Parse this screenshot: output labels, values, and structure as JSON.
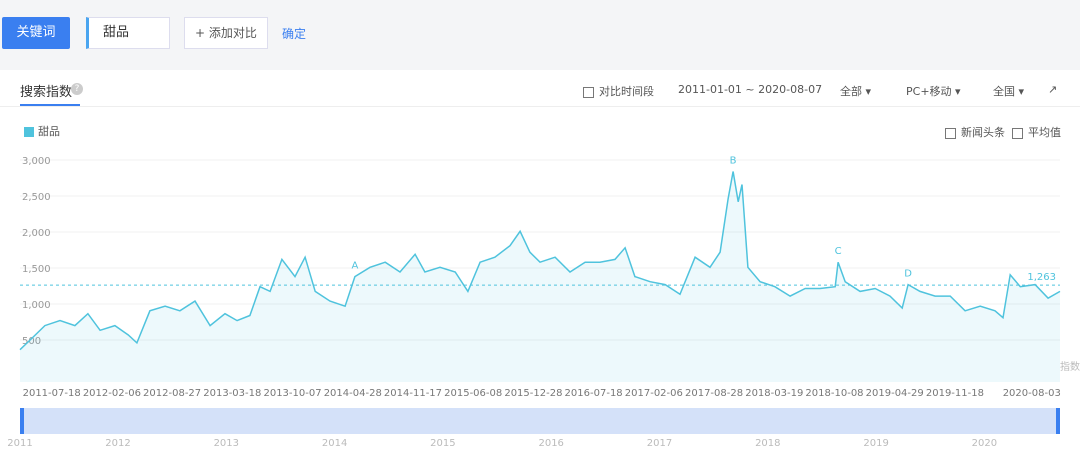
{
  "toolbar": {
    "keyword_button": "关键词",
    "keyword": "甜品",
    "add_compare": "添加对比",
    "confirm": "确定"
  },
  "panel": {
    "title": "搜索指数",
    "help": "?",
    "compare_period": "对比时间段",
    "date_range": "2011-01-01 ~ 2020-08-07",
    "scope": "全部",
    "device": "PC+移动",
    "region": "全国",
    "news": "新闻头条",
    "average_toggle": "平均值",
    "watermark": "@百度指数"
  },
  "chart_data": {
    "type": "line",
    "x": [
      "2011-01-01",
      "2011-02-04",
      "2011-03-26",
      "2011-05-16",
      "2011-07-05",
      "2011-08-18",
      "2011-09-28",
      "2011-11-17",
      "2012-01-01",
      "2012-01-30",
      "2012-03-14",
      "2012-05-04",
      "2012-06-23",
      "2012-08-13",
      "2012-10-03",
      "2012-11-22",
      "2013-01-02",
      "2013-02-14",
      "2013-03-20",
      "2013-04-23",
      "2013-06-02",
      "2013-07-16",
      "2013-08-19",
      "2013-09-22",
      "2013-11-11",
      "2014-01-01",
      "2014-02-03",
      "2014-03-26",
      "2014-05-16",
      "2014-07-05",
      "2014-08-25",
      "2014-09-27",
      "2014-11-17",
      "2015-01-07",
      "2015-02-19",
      "2015-04-01",
      "2015-05-21",
      "2015-07-11",
      "2015-08-14",
      "2015-09-16",
      "2015-10-20",
      "2015-12-10",
      "2016-01-29",
      "2016-03-20",
      "2016-05-09",
      "2016-06-29",
      "2016-08-02",
      "2016-09-04",
      "2016-10-25",
      "2016-12-15",
      "2017-02-03",
      "2017-03-26",
      "2017-05-15",
      "2017-06-18",
      "2017-07-15",
      "2017-08-01",
      "2017-08-18",
      "2017-08-31",
      "2017-09-20",
      "2017-10-31",
      "2017-12-20",
      "2018-02-09",
      "2018-04-01",
      "2018-05-21",
      "2018-07-11",
      "2018-07-21",
      "2018-08-14",
      "2018-10-03",
      "2018-11-23",
      "2019-01-12",
      "2019-02-22",
      "2019-03-14",
      "2019-04-23",
      "2019-06-13",
      "2019-08-03",
      "2019-09-22",
      "2019-11-12",
      "2020-01-01",
      "2020-01-28",
      "2020-02-21",
      "2020-03-26",
      "2020-05-15",
      "2020-06-28",
      "2020-08-07"
    ],
    "series": [
      {
        "name": "甜品",
        "color": "#4fc3dd",
        "values": [
          365,
          500,
          700,
          770,
          700,
          865,
          635,
          700,
          570,
          460,
          905,
          970,
          905,
          1040,
          700,
          865,
          770,
          840,
          1240,
          1175,
          1620,
          1380,
          1650,
          1175,
          1040,
          970,
          1380,
          1510,
          1580,
          1445,
          1690,
          1445,
          1510,
          1445,
          1175,
          1580,
          1650,
          1810,
          2010,
          1720,
          1580,
          1650,
          1445,
          1580,
          1580,
          1620,
          1780,
          1380,
          1310,
          1270,
          1135,
          1650,
          1510,
          1720,
          2460,
          2840,
          2420,
          2660,
          1510,
          1310,
          1240,
          1110,
          1215,
          1215,
          1240,
          1580,
          1310,
          1175,
          1215,
          1110,
          945,
          1270,
          1175,
          1110,
          1110,
          905,
          970,
          905,
          810,
          1405,
          1240,
          1270,
          1080,
          1175
        ]
      }
    ],
    "xlim": [
      "2011-01-01",
      "2020-08-07"
    ],
    "xticks": [
      "2011-07-18",
      "2012-02-06",
      "2012-08-27",
      "2013-03-18",
      "2013-10-07",
      "2014-04-28",
      "2014-11-17",
      "2015-06-08",
      "2015-12-28",
      "2016-07-18",
      "2017-02-06",
      "2017-08-28",
      "2018-03-19",
      "2018-10-08",
      "2019-04-29",
      "2019-11-18",
      "2020-08-03"
    ],
    "ylim": [
      0,
      3000
    ],
    "yticks": [
      500,
      {
        "value": 1000,
        "label": "1,000"
      },
      {
        "value": 1500,
        "label": "1,500"
      },
      {
        "value": 2000,
        "label": "2,000"
      },
      {
        "value": 2500,
        "label": "2,500"
      },
      {
        "value": 3000,
        "label": "3,000"
      }
    ],
    "grid": true,
    "average": 1263,
    "average_label": "1,263",
    "annotations": [
      {
        "text": "A",
        "x": "2014-02-03",
        "y": 1380
      },
      {
        "text": "B",
        "x": "2017-08-01",
        "y": 2840
      },
      {
        "text": "C",
        "x": "2018-07-21",
        "y": 1580
      },
      {
        "text": "D",
        "x": "2019-03-14",
        "y": 1270
      }
    ],
    "navigator_years": [
      "2011",
      "2012",
      "2013",
      "2014",
      "2015",
      "2016",
      "2017",
      "2018",
      "2019",
      "2020"
    ]
  }
}
